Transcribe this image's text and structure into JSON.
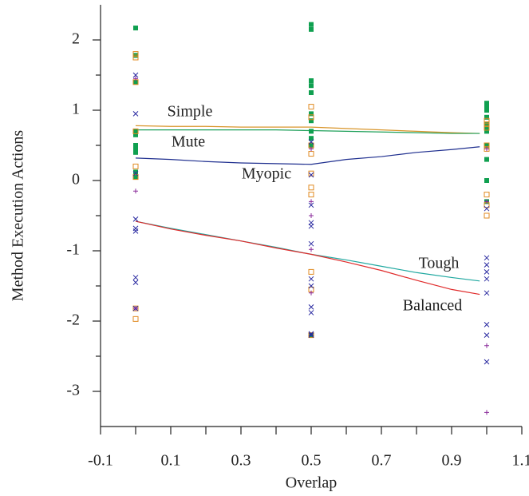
{
  "chart_data": {
    "type": "scatter",
    "x_label": "Overlap",
    "y_label": "Method Execution Actions",
    "xlim": [
      -0.1,
      1.1
    ],
    "ylim": [
      -3.5,
      2.5
    ],
    "xticks": [
      -0.1,
      0.1,
      0.3,
      0.5,
      0.7,
      0.9,
      1.1
    ],
    "xminorticks": [
      0,
      0.2,
      0.4,
      0.6,
      0.8,
      1
    ],
    "yticks": [
      -3,
      -2,
      -1,
      0,
      1,
      2
    ],
    "yminorticks": [
      -2.5,
      -1.5,
      -0.5,
      0.5,
      1.5
    ],
    "lines": [
      {
        "name": "Simple",
        "color": "#d9952a",
        "x": [
          0,
          0.1,
          0.2,
          0.3,
          0.4,
          0.5,
          0.6,
          0.7,
          0.8,
          0.9,
          0.98
        ],
        "values": [
          0.78,
          0.77,
          0.77,
          0.76,
          0.76,
          0.76,
          0.74,
          0.72,
          0.7,
          0.68,
          0.67
        ]
      },
      {
        "name": "Mute",
        "color": "#1fa05a",
        "x": [
          0,
          0.1,
          0.2,
          0.3,
          0.4,
          0.5,
          0.6,
          0.7,
          0.8,
          0.9,
          0.98
        ],
        "values": [
          0.72,
          0.72,
          0.72,
          0.72,
          0.72,
          0.71,
          0.7,
          0.69,
          0.68,
          0.67,
          0.67
        ]
      },
      {
        "name": "Myopic",
        "color": "#1f2f8f",
        "x": [
          0,
          0.1,
          0.2,
          0.3,
          0.4,
          0.5,
          0.6,
          0.7,
          0.8,
          0.9,
          0.98
        ],
        "values": [
          0.32,
          0.3,
          0.27,
          0.25,
          0.24,
          0.23,
          0.3,
          0.34,
          0.4,
          0.44,
          0.48
        ]
      },
      {
        "name": "Tough",
        "color": "#1fa8a0",
        "x": [
          0,
          0.1,
          0.2,
          0.3,
          0.4,
          0.5,
          0.6,
          0.7,
          0.8,
          0.9,
          0.98
        ],
        "values": [
          -0.58,
          -0.68,
          -0.77,
          -0.86,
          -0.95,
          -1.05,
          -1.13,
          -1.22,
          -1.31,
          -1.38,
          -1.43
        ]
      },
      {
        "name": "Balanced",
        "color": "#e02a2a",
        "x": [
          0,
          0.1,
          0.2,
          0.3,
          0.4,
          0.5,
          0.6,
          0.7,
          0.8,
          0.9,
          0.98
        ],
        "values": [
          -0.58,
          -0.69,
          -0.78,
          -0.86,
          -0.96,
          -1.05,
          -1.16,
          -1.28,
          -1.42,
          -1.55,
          -1.62
        ]
      }
    ],
    "points": [
      {
        "marker": "filled-square",
        "color": "#10a050",
        "x": [
          0,
          0,
          0,
          0,
          0,
          0,
          0,
          0,
          0,
          0,
          0.5,
          0.5,
          0.5,
          0.5,
          0.5,
          0.5,
          0.5,
          0.5,
          0.5,
          0.5,
          0.5,
          1,
          1,
          1,
          1,
          1,
          1,
          1,
          1,
          1,
          1,
          1
        ],
        "values": [
          2.17,
          1.78,
          1.4,
          0.7,
          0.65,
          0.5,
          0.45,
          0.4,
          0.12,
          0.05,
          2.22,
          2.15,
          1.42,
          1.35,
          1.25,
          0.95,
          0.85,
          0.7,
          0.6,
          0.5,
          -2.2,
          1.1,
          1.05,
          1.0,
          0.9,
          0.8,
          0.75,
          0.7,
          0.5,
          0.3,
          0.0,
          -0.3
        ]
      },
      {
        "marker": "open-square",
        "color": "#e08a20",
        "x": [
          0,
          0,
          0,
          0,
          0,
          0,
          0,
          0,
          0.5,
          0.5,
          0.5,
          0.5,
          0.5,
          0.5,
          0.5,
          0.5,
          0.5,
          0.5,
          1,
          1,
          1,
          1,
          1,
          1,
          1,
          1
        ],
        "values": [
          1.8,
          1.75,
          1.4,
          0.7,
          0.2,
          0.05,
          -1.82,
          -1.97,
          1.05,
          0.9,
          0.5,
          0.38,
          0.1,
          -0.1,
          -0.2,
          -1.3,
          -1.55,
          -2.2,
          0.85,
          0.8,
          0.75,
          0.5,
          0.45,
          -0.2,
          -0.35,
          -0.5
        ]
      },
      {
        "marker": "cross",
        "color": "#2a2aa0",
        "x": [
          0,
          0,
          0,
          0,
          0,
          0,
          0,
          0,
          0,
          0.5,
          0.5,
          0.5,
          0.5,
          0.5,
          0.5,
          0.5,
          0.5,
          0.5,
          0.5,
          0.5,
          0.5,
          1,
          1,
          1,
          1,
          1,
          1,
          1,
          1,
          1
        ],
        "values": [
          1.5,
          0.95,
          0.1,
          -0.55,
          -0.68,
          -0.72,
          -1.38,
          -1.45,
          -1.82,
          0.55,
          0.08,
          -0.35,
          -0.6,
          -0.65,
          -0.9,
          -1.4,
          -1.5,
          -1.8,
          -1.88,
          -2.18,
          -2.2,
          -0.4,
          -1.1,
          -1.2,
          -1.3,
          -1.4,
          -1.6,
          -2.05,
          -2.2,
          -2.58
        ]
      },
      {
        "marker": "plus",
        "color": "#8a2a9a",
        "x": [
          0,
          0,
          0,
          0.5,
          0.5,
          0.5,
          0.5,
          0.5,
          1,
          1,
          1,
          1
        ],
        "values": [
          1.45,
          -0.15,
          -1.82,
          0.45,
          -0.3,
          -0.5,
          -0.98,
          -1.6,
          0.45,
          -0.3,
          -2.35,
          -3.3
        ]
      }
    ]
  }
}
